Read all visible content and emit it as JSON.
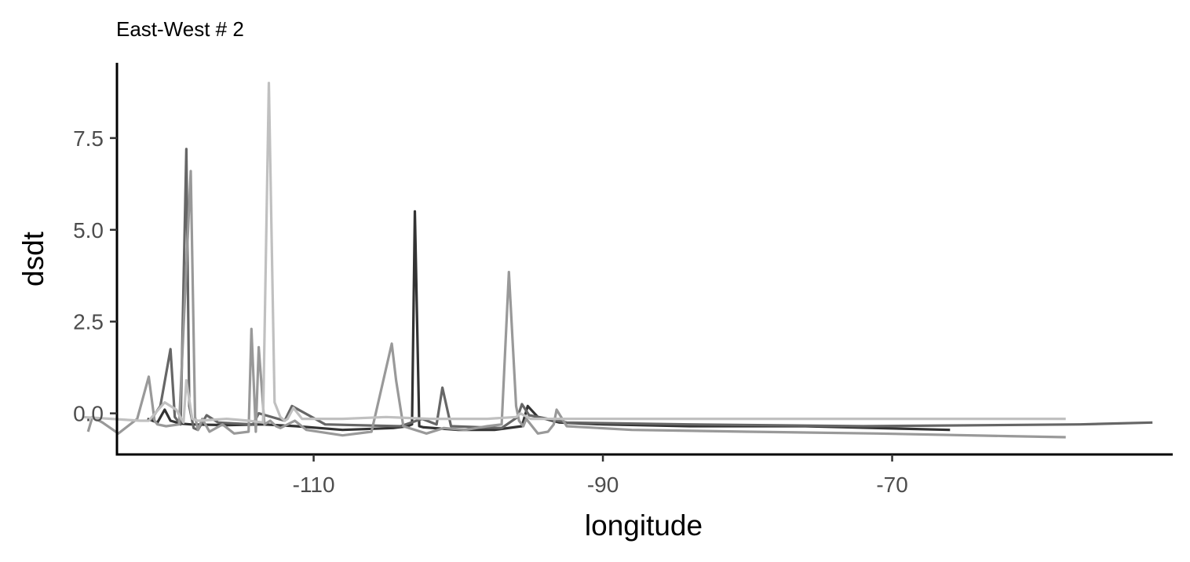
{
  "chart_data": {
    "type": "line",
    "title": "East-West # 2",
    "xlabel": "longitude",
    "ylabel": "dsdt",
    "xlim": [
      -123.6,
      -50.6
    ],
    "ylim": [
      -1.12,
      9.55
    ],
    "xticks": [
      -110,
      -90,
      -70
    ],
    "xtick_labels": [
      "-110",
      "-90",
      "-70"
    ],
    "yticks": [
      0.0,
      2.5,
      5.0,
      7.5
    ],
    "ytick_labels": [
      "0.0",
      "2.5",
      "5.0",
      "7.5"
    ],
    "grid": false,
    "legend": "none",
    "series": [
      {
        "color": "#333333",
        "x": [
          -121.5,
          -120.8,
          -120.3,
          -119.9,
          -119.2,
          -118.5,
          -116.0,
          -113.5,
          -111.2,
          -108.0,
          -104.5,
          -103.5,
          -103.2,
          -103.0,
          -102.7,
          -102.4,
          -100.0,
          -97.5,
          -95.6,
          -95.2,
          -94.5,
          -93.0,
          -90.0,
          -84.0,
          -76.0,
          -66.0
        ],
        "y": [
          -0.15,
          -0.25,
          0.1,
          -0.2,
          -0.28,
          -0.3,
          -0.32,
          -0.3,
          -0.35,
          -0.45,
          -0.4,
          -0.35,
          -0.3,
          5.5,
          -0.35,
          -0.38,
          -0.45,
          -0.45,
          -0.35,
          0.2,
          -0.1,
          -0.25,
          -0.3,
          -0.35,
          -0.35,
          -0.45
        ]
      },
      {
        "color": "#666666",
        "x": [
          -121.3,
          -120.6,
          -119.9,
          -119.6,
          -119.2,
          -118.8,
          -118.6,
          -118.3,
          -118.0,
          -117.4,
          -116.6,
          -114.2,
          -113.8,
          -112.0,
          -111.5,
          -109.2,
          -104.0,
          -102.5,
          -101.5,
          -101.1,
          -100.5,
          -97.0,
          -95.9,
          -95.6,
          -95.1,
          -92.5,
          -84.0,
          -72.0,
          -57.0,
          -52.0
        ],
        "y": [
          -0.2,
          0.2,
          1.75,
          -0.1,
          -0.3,
          7.2,
          0.2,
          -0.4,
          -0.45,
          -0.05,
          -0.25,
          -0.3,
          0.0,
          -0.2,
          0.2,
          -0.3,
          -0.35,
          -0.15,
          -0.3,
          0.7,
          -0.35,
          -0.4,
          -0.1,
          0.25,
          -0.05,
          -0.25,
          -0.3,
          -0.35,
          -0.3,
          -0.25
        ]
      },
      {
        "color": "#999999",
        "x": [
          -125.6,
          -125.3,
          -124.6,
          -123.5,
          -122.2,
          -121.4,
          -121.0,
          -120.8,
          -120.2,
          -119.3,
          -118.5,
          -118.2,
          -118.0,
          -117.7,
          -117.2,
          -116.3,
          -115.5,
          -114.5,
          -114.3,
          -114.0,
          -113.8,
          -113.4,
          -113.0,
          -112.6,
          -112.3,
          -111.3,
          -110.5,
          -108.0,
          -106.0,
          -104.6,
          -104.3,
          -103.8,
          -102.2,
          -101.0,
          -99.5,
          -98.0,
          -97.0,
          -96.5,
          -96.0,
          -95.8,
          -95.5,
          -95.3,
          -94.5,
          -93.8,
          -93.4,
          -93.2,
          -92.5,
          -88.0,
          -80.0,
          -71.0,
          -62.0,
          -58.0
        ],
        "y": [
          -0.5,
          -0.1,
          -0.25,
          -0.55,
          -0.15,
          1.0,
          -0.2,
          -0.3,
          -0.35,
          -0.3,
          6.6,
          -0.1,
          -0.45,
          -0.15,
          -0.5,
          -0.3,
          -0.55,
          -0.5,
          2.3,
          -0.5,
          1.8,
          -0.3,
          -0.2,
          -0.35,
          -0.4,
          -0.2,
          -0.45,
          -0.6,
          -0.5,
          1.9,
          0.9,
          -0.35,
          -0.55,
          -0.4,
          -0.45,
          -0.35,
          -0.3,
          3.85,
          0.2,
          -0.2,
          -0.35,
          -0.15,
          -0.55,
          -0.5,
          -0.3,
          0.1,
          -0.35,
          -0.45,
          -0.5,
          -0.55,
          -0.62,
          -0.65
        ]
      },
      {
        "color": "#c0c0c0",
        "x": [
          -126.0,
          -124.0,
          -122.0,
          -121.4,
          -120.3,
          -119.5,
          -119.0,
          -118.8,
          -118.4,
          -118.0,
          -116.0,
          -114.5,
          -113.5,
          -113.1,
          -112.7,
          -112.3,
          -112.0,
          -111.8,
          -111.4,
          -110.8,
          -108.0,
          -105.0,
          -102.0,
          -98.0,
          -96.0,
          -95.7,
          -95.0,
          -92.0,
          -85.0,
          -75.0,
          -65.0,
          -58.0
        ],
        "y": [
          -0.1,
          -0.15,
          -0.2,
          -0.2,
          0.3,
          0.1,
          -0.25,
          0.9,
          -0.15,
          -0.2,
          -0.15,
          -0.2,
          -0.25,
          9.0,
          0.3,
          -0.1,
          -0.2,
          -0.15,
          0.15,
          -0.15,
          -0.15,
          -0.1,
          -0.15,
          -0.15,
          -0.1,
          0.0,
          -0.15,
          -0.15,
          -0.15,
          -0.15,
          -0.15,
          -0.15
        ]
      }
    ]
  }
}
